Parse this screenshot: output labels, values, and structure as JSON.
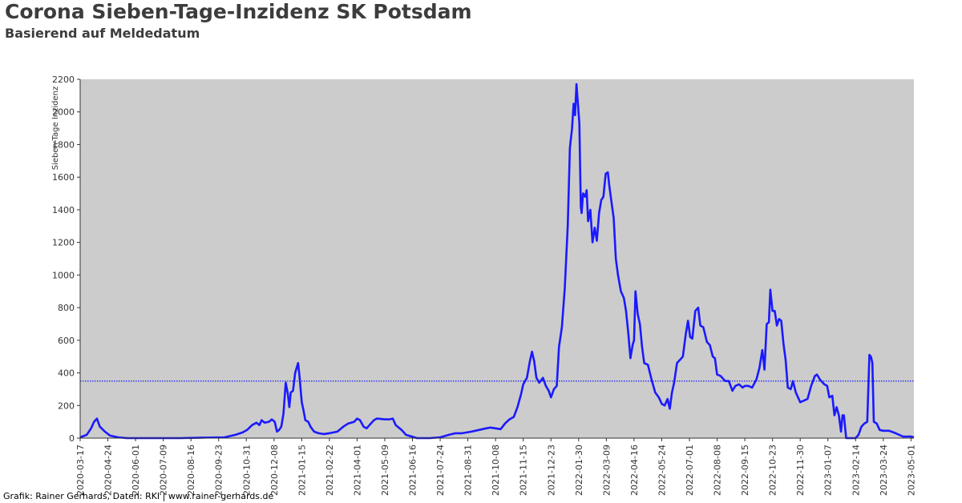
{
  "header": {
    "title": "Corona Sieben-Tage-Inzidenz SK Potsdam",
    "subtitle": "Basierend auf Meldedatum"
  },
  "footer": {
    "credit": "Grafik: Rainer Gerhards, Daten: RKI | www.rainer-gerhards.de"
  },
  "colors": {
    "plot_background": "#cccccc",
    "series_line": "#1a1aff",
    "reference_line": "#1a1aff"
  },
  "chart_data": {
    "type": "line",
    "title": "Corona Sieben-Tage-Inzidenz SK Potsdam",
    "subtitle": "Basierend auf Meldedatum",
    "xlabel": "",
    "ylabel": "Sieben-Tage Inzidenz",
    "ylim": [
      0,
      2200
    ],
    "xlim": [
      "2020-03-17",
      "2023-05-05"
    ],
    "yticks": [
      0,
      200,
      400,
      600,
      800,
      1000,
      1200,
      1400,
      1600,
      1800,
      2000,
      2200
    ],
    "xticks": [
      "2020-03-17",
      "2020-04-24",
      "2020-06-01",
      "2020-07-09",
      "2020-08-16",
      "2020-09-23",
      "2020-10-31",
      "2020-12-08",
      "2021-01-15",
      "2021-02-22",
      "2021-04-01",
      "2021-05-09",
      "2021-06-16",
      "2021-07-24",
      "2021-08-31",
      "2021-10-08",
      "2021-11-15",
      "2021-12-23",
      "2022-01-30",
      "2022-03-09",
      "2022-04-16",
      "2022-05-24",
      "2022-07-01",
      "2022-08-08",
      "2022-09-15",
      "2022-10-23",
      "2022-11-30",
      "2023-01-07",
      "2023-02-14",
      "2023-03-24",
      "2023-05-01"
    ],
    "grid": false,
    "reference_line": {
      "value": 350,
      "style": "dotted"
    },
    "series": [
      {
        "points": [
          [
            "2020-03-17",
            5
          ],
          [
            "2020-03-26",
            20
          ],
          [
            "2020-04-01",
            60
          ],
          [
            "2020-04-05",
            100
          ],
          [
            "2020-04-09",
            120
          ],
          [
            "2020-04-13",
            70
          ],
          [
            "2020-04-20",
            40
          ],
          [
            "2020-04-27",
            15
          ],
          [
            "2020-05-08",
            5
          ],
          [
            "2020-05-20",
            0
          ],
          [
            "2020-08-01",
            0
          ],
          [
            "2020-09-01",
            3
          ],
          [
            "2020-10-01",
            5
          ],
          [
            "2020-10-16",
            20
          ],
          [
            "2020-10-26",
            35
          ],
          [
            "2020-11-01",
            50
          ],
          [
            "2020-11-08",
            80
          ],
          [
            "2020-11-14",
            95
          ],
          [
            "2020-11-18",
            80
          ],
          [
            "2020-11-21",
            110
          ],
          [
            "2020-11-25",
            95
          ],
          [
            "2020-12-01",
            100
          ],
          [
            "2020-12-05",
            115
          ],
          [
            "2020-12-09",
            100
          ],
          [
            "2020-12-12",
            40
          ],
          [
            "2020-12-15",
            50
          ],
          [
            "2020-12-18",
            70
          ],
          [
            "2020-12-21",
            150
          ],
          [
            "2020-12-24",
            340
          ],
          [
            "2020-12-27",
            270
          ],
          [
            "2020-12-29",
            190
          ],
          [
            "2020-12-31",
            280
          ],
          [
            "2021-01-03",
            290
          ],
          [
            "2021-01-06",
            400
          ],
          [
            "2021-01-10",
            460
          ],
          [
            "2021-01-12",
            380
          ],
          [
            "2021-01-15",
            220
          ],
          [
            "2021-01-17",
            180
          ],
          [
            "2021-01-20",
            110
          ],
          [
            "2021-01-24",
            100
          ],
          [
            "2021-01-27",
            70
          ],
          [
            "2021-02-01",
            40
          ],
          [
            "2021-02-07",
            30
          ],
          [
            "2021-02-14",
            25
          ],
          [
            "2021-02-22",
            30
          ],
          [
            "2021-03-05",
            40
          ],
          [
            "2021-03-13",
            70
          ],
          [
            "2021-03-20",
            90
          ],
          [
            "2021-03-28",
            100
          ],
          [
            "2021-04-01",
            120
          ],
          [
            "2021-04-05",
            110
          ],
          [
            "2021-04-10",
            70
          ],
          [
            "2021-04-14",
            60
          ],
          [
            "2021-04-18",
            80
          ],
          [
            "2021-04-24",
            110
          ],
          [
            "2021-04-28",
            120
          ],
          [
            "2021-05-09",
            115
          ],
          [
            "2021-05-15",
            115
          ],
          [
            "2021-05-20",
            120
          ],
          [
            "2021-05-24",
            80
          ],
          [
            "2021-06-01",
            50
          ],
          [
            "2021-06-07",
            20
          ],
          [
            "2021-06-15",
            10
          ],
          [
            "2021-06-22",
            0
          ],
          [
            "2021-07-10",
            0
          ],
          [
            "2021-07-24",
            5
          ],
          [
            "2021-08-05",
            20
          ],
          [
            "2021-08-14",
            30
          ],
          [
            "2021-08-23",
            30
          ],
          [
            "2021-09-05",
            40
          ],
          [
            "2021-09-15",
            50
          ],
          [
            "2021-09-25",
            60
          ],
          [
            "2021-10-01",
            65
          ],
          [
            "2021-10-08",
            60
          ],
          [
            "2021-10-15",
            55
          ],
          [
            "2021-10-21",
            90
          ],
          [
            "2021-10-27",
            115
          ],
          [
            "2021-11-02",
            130
          ],
          [
            "2021-11-07",
            190
          ],
          [
            "2021-11-12",
            270
          ],
          [
            "2021-11-15",
            330
          ],
          [
            "2021-11-20",
            370
          ],
          [
            "2021-11-24",
            470
          ],
          [
            "2021-11-27",
            530
          ],
          [
            "2021-11-30",
            470
          ],
          [
            "2021-12-03",
            370
          ],
          [
            "2021-12-07",
            340
          ],
          [
            "2021-12-12",
            370
          ],
          [
            "2021-12-16",
            320
          ],
          [
            "2021-12-20",
            290
          ],
          [
            "2021-12-23",
            250
          ],
          [
            "2021-12-27",
            300
          ],
          [
            "2021-12-31",
            320
          ],
          [
            "2022-01-03",
            560
          ],
          [
            "2022-01-07",
            680
          ],
          [
            "2022-01-11",
            920
          ],
          [
            "2022-01-15",
            1300
          ],
          [
            "2022-01-18",
            1780
          ],
          [
            "2022-01-21",
            1900
          ],
          [
            "2022-01-23",
            2050
          ],
          [
            "2022-01-25",
            1980
          ],
          [
            "2022-01-27",
            2170
          ],
          [
            "2022-01-29",
            2050
          ],
          [
            "2022-01-31",
            1930
          ],
          [
            "2022-02-02",
            1420
          ],
          [
            "2022-02-03",
            1380
          ],
          [
            "2022-02-05",
            1500
          ],
          [
            "2022-02-08",
            1480
          ],
          [
            "2022-02-10",
            1520
          ],
          [
            "2022-02-12",
            1330
          ],
          [
            "2022-02-15",
            1400
          ],
          [
            "2022-02-18",
            1200
          ],
          [
            "2022-02-21",
            1290
          ],
          [
            "2022-02-24",
            1210
          ],
          [
            "2022-02-27",
            1380
          ],
          [
            "2022-03-02",
            1460
          ],
          [
            "2022-03-05",
            1480
          ],
          [
            "2022-03-08",
            1620
          ],
          [
            "2022-03-11",
            1630
          ],
          [
            "2022-03-13",
            1550
          ],
          [
            "2022-03-16",
            1450
          ],
          [
            "2022-03-19",
            1350
          ],
          [
            "2022-03-22",
            1100
          ],
          [
            "2022-03-25",
            1000
          ],
          [
            "2022-03-29",
            900
          ],
          [
            "2022-04-02",
            860
          ],
          [
            "2022-04-05",
            780
          ],
          [
            "2022-04-08",
            650
          ],
          [
            "2022-04-11",
            490
          ],
          [
            "2022-04-14",
            570
          ],
          [
            "2022-04-16",
            600
          ],
          [
            "2022-04-18",
            900
          ],
          [
            "2022-04-21",
            760
          ],
          [
            "2022-04-24",
            700
          ],
          [
            "2022-04-27",
            560
          ],
          [
            "2022-04-30",
            460
          ],
          [
            "2022-05-05",
            450
          ],
          [
            "2022-05-10",
            360
          ],
          [
            "2022-05-15",
            280
          ],
          [
            "2022-05-20",
            250
          ],
          [
            "2022-05-24",
            210
          ],
          [
            "2022-05-28",
            200
          ],
          [
            "2022-06-01",
            240
          ],
          [
            "2022-06-04",
            180
          ],
          [
            "2022-06-07",
            280
          ],
          [
            "2022-06-10",
            340
          ],
          [
            "2022-06-14",
            460
          ],
          [
            "2022-06-18",
            480
          ],
          [
            "2022-06-22",
            500
          ],
          [
            "2022-06-26",
            640
          ],
          [
            "2022-06-29",
            720
          ],
          [
            "2022-07-02",
            620
          ],
          [
            "2022-07-05",
            610
          ],
          [
            "2022-07-09",
            780
          ],
          [
            "2022-07-13",
            800
          ],
          [
            "2022-07-16",
            690
          ],
          [
            "2022-07-20",
            680
          ],
          [
            "2022-07-25",
            590
          ],
          [
            "2022-07-29",
            570
          ],
          [
            "2022-08-02",
            500
          ],
          [
            "2022-08-05",
            490
          ],
          [
            "2022-08-08",
            390
          ],
          [
            "2022-08-13",
            380
          ],
          [
            "2022-08-19",
            350
          ],
          [
            "2022-08-24",
            350
          ],
          [
            "2022-08-29",
            290
          ],
          [
            "2022-09-02",
            320
          ],
          [
            "2022-09-07",
            330
          ],
          [
            "2022-09-12",
            310
          ],
          [
            "2022-09-15",
            320
          ],
          [
            "2022-09-20",
            320
          ],
          [
            "2022-09-25",
            310
          ],
          [
            "2022-10-01",
            360
          ],
          [
            "2022-10-05",
            430
          ],
          [
            "2022-10-09",
            540
          ],
          [
            "2022-10-12",
            420
          ],
          [
            "2022-10-15",
            700
          ],
          [
            "2022-10-18",
            710
          ],
          [
            "2022-10-20",
            910
          ],
          [
            "2022-10-23",
            780
          ],
          [
            "2022-10-26",
            780
          ],
          [
            "2022-10-29",
            690
          ],
          [
            "2022-11-01",
            730
          ],
          [
            "2022-11-04",
            720
          ],
          [
            "2022-11-07",
            580
          ],
          [
            "2022-11-10",
            480
          ],
          [
            "2022-11-13",
            310
          ],
          [
            "2022-11-17",
            300
          ],
          [
            "2022-11-20",
            350
          ],
          [
            "2022-11-24",
            280
          ],
          [
            "2022-11-30",
            220
          ],
          [
            "2022-12-05",
            230
          ],
          [
            "2022-12-10",
            240
          ],
          [
            "2022-12-15",
            320
          ],
          [
            "2022-12-20",
            380
          ],
          [
            "2022-12-23",
            390
          ],
          [
            "2022-12-27",
            360
          ],
          [
            "2023-01-02",
            330
          ],
          [
            "2023-01-06",
            320
          ],
          [
            "2023-01-09",
            250
          ],
          [
            "2023-01-13",
            260
          ],
          [
            "2023-01-16",
            140
          ],
          [
            "2023-01-19",
            190
          ],
          [
            "2023-01-22",
            140
          ],
          [
            "2023-01-25",
            40
          ],
          [
            "2023-01-27",
            140
          ],
          [
            "2023-01-29",
            140
          ],
          [
            "2023-02-01",
            0
          ],
          [
            "2023-02-14",
            0
          ],
          [
            "2023-02-18",
            20
          ],
          [
            "2023-02-22",
            70
          ],
          [
            "2023-02-26",
            90
          ],
          [
            "2023-03-02",
            100
          ],
          [
            "2023-03-05",
            510
          ],
          [
            "2023-03-07",
            500
          ],
          [
            "2023-03-09",
            460
          ],
          [
            "2023-03-11",
            100
          ],
          [
            "2023-03-15",
            90
          ],
          [
            "2023-03-19",
            50
          ],
          [
            "2023-03-24",
            45
          ],
          [
            "2023-04-01",
            45
          ],
          [
            "2023-04-10",
            30
          ],
          [
            "2023-04-20",
            10
          ],
          [
            "2023-05-01",
            10
          ],
          [
            "2023-05-05",
            5
          ]
        ]
      }
    ]
  }
}
